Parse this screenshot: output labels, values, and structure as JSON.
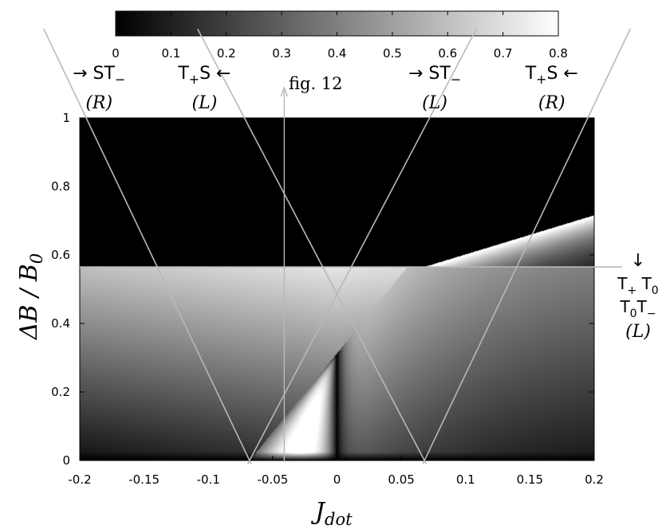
{
  "chart_data": {
    "type": "heatmap",
    "title": "",
    "xlabel": "J",
    "xlabel_sub": "dot",
    "ylabel": "ΔB / B",
    "ylabel_sub": "0",
    "xlim": [
      -0.2,
      0.2
    ],
    "ylim": [
      0,
      1
    ],
    "x_ticks": [
      -0.2,
      -0.15,
      -0.1,
      -0.05,
      0,
      0.05,
      0.1,
      0.15,
      0.2
    ],
    "x_tick_labels": [
      "-0.2",
      "-0.15",
      "-0.1",
      "-0.05",
      "0",
      "0.05",
      "0.1",
      "0.15",
      "0.2"
    ],
    "y_ticks": [
      0,
      0.2,
      0.4,
      0.6,
      0.8,
      1
    ],
    "y_tick_labels": [
      "0",
      "0.2",
      "0.4",
      "0.6",
      "0.8",
      "1"
    ],
    "colorbar": {
      "range": [
        0,
        0.8
      ],
      "ticks": [
        0,
        0.1,
        0.2,
        0.3,
        0.4,
        0.5,
        0.6,
        0.7,
        0.8
      ],
      "tick_labels": [
        "0",
        "0.1",
        "0.2",
        "0.3",
        "0.4",
        "0.5",
        "0.6",
        "0.7",
        "0.8"
      ],
      "colormap": "black-to-white"
    },
    "field_threshold": 0.565,
    "resonance_lines": [
      {
        "from": [
          -0.195,
          1.0
        ],
        "to": [
          -0.068,
          0.0
        ]
      },
      {
        "from": [
          -0.072,
          1.0
        ],
        "to": [
          0.068,
          0.0
        ]
      },
      {
        "from": [
          0.072,
          1.0
        ],
        "to": [
          -0.068,
          0.0
        ]
      },
      {
        "from": [
          0.195,
          1.0
        ],
        "to": [
          0.068,
          0.0
        ]
      }
    ],
    "marker_x": -0.041,
    "annotations": [
      {
        "id": "st-minus-right",
        "label_text": "→ ST",
        "label_sub": "−",
        "paren": "(R)",
        "x": -0.185
      },
      {
        "id": "tplus-s-left",
        "label_text": "T",
        "label_sub": "+",
        "label_tail": "S ←",
        "paren": "(L)",
        "x": -0.103
      },
      {
        "id": "st-minus-left",
        "label_text": "→ ST",
        "label_sub": "−",
        "paren": "(L)",
        "x": 0.076
      },
      {
        "id": "tplus-s-right",
        "label_text": "T",
        "label_sub": "+",
        "label_tail": "S ←",
        "paren": "(R)",
        "x": 0.167
      }
    ],
    "fig_label": "fig. 12",
    "side_annotation": {
      "arrow": "↓",
      "line1_a": "T",
      "line1_a_sub": "+",
      "line1_b": " T",
      "line1_b_sub": "0",
      "line2_a": "T",
      "line2_a_sub": "0",
      "line2_b": "T",
      "line2_b_sub": "−",
      "paren": "(L)"
    }
  }
}
